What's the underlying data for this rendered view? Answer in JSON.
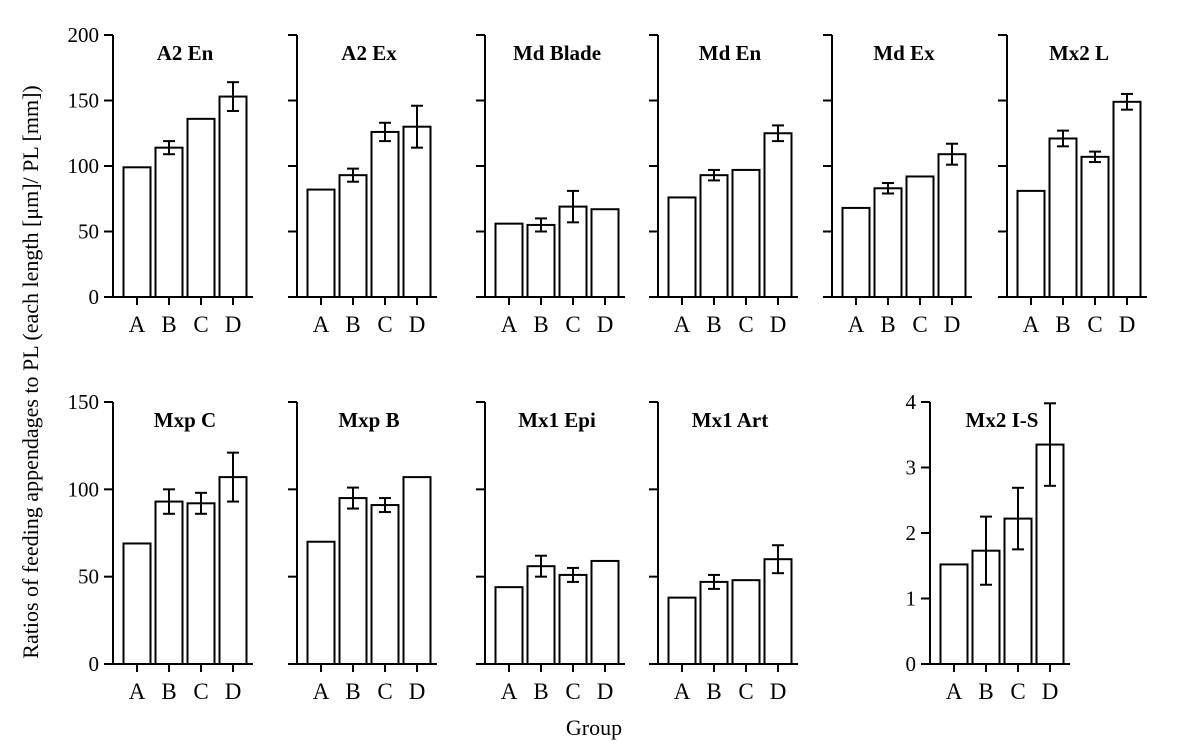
{
  "figure": {
    "ylabel": "Ratios of feeding appendages to PL (each length [μm]/ PL [mm])",
    "xlabel": "Group"
  },
  "chart_data": [
    {
      "type": "bar",
      "title": "A2 En",
      "categories": [
        "A",
        "B",
        "C",
        "D"
      ],
      "values": [
        99,
        114,
        136,
        153
      ],
      "errors": [
        0,
        5,
        0,
        11
      ],
      "ylim": [
        0,
        200
      ],
      "yticks": [
        0,
        50,
        100,
        150,
        200
      ],
      "show_tick_labels": true
    },
    {
      "type": "bar",
      "title": "A2 Ex",
      "categories": [
        "A",
        "B",
        "C",
        "D"
      ],
      "values": [
        82,
        93,
        126,
        130
      ],
      "errors": [
        0,
        5,
        7,
        16
      ],
      "ylim": [
        0,
        200
      ],
      "yticks": [
        0,
        50,
        100,
        150,
        200
      ],
      "show_tick_labels": false
    },
    {
      "type": "bar",
      "title": "Md Blade",
      "categories": [
        "A",
        "B",
        "C",
        "D"
      ],
      "values": [
        56,
        55,
        69,
        67
      ],
      "errors": [
        0,
        5,
        12,
        0
      ],
      "ylim": [
        0,
        200
      ],
      "yticks": [
        0,
        50,
        100,
        150,
        200
      ],
      "show_tick_labels": false
    },
    {
      "type": "bar",
      "title": "Md En",
      "categories": [
        "A",
        "B",
        "C",
        "D"
      ],
      "values": [
        76,
        93,
        97,
        125
      ],
      "errors": [
        0,
        4,
        0,
        6
      ],
      "ylim": [
        0,
        200
      ],
      "yticks": [
        0,
        50,
        100,
        150,
        200
      ],
      "show_tick_labels": false
    },
    {
      "type": "bar",
      "title": "Md Ex",
      "categories": [
        "A",
        "B",
        "C",
        "D"
      ],
      "values": [
        68,
        83,
        92,
        109
      ],
      "errors": [
        0,
        4,
        0,
        8
      ],
      "ylim": [
        0,
        200
      ],
      "yticks": [
        0,
        50,
        100,
        150,
        200
      ],
      "show_tick_labels": false
    },
    {
      "type": "bar",
      "title": "Mx2 L",
      "categories": [
        "A",
        "B",
        "C",
        "D"
      ],
      "values": [
        81,
        121,
        107,
        149
      ],
      "errors": [
        0,
        6,
        4,
        6
      ],
      "ylim": [
        0,
        200
      ],
      "yticks": [
        0,
        50,
        100,
        150,
        200
      ],
      "show_tick_labels": false
    },
    {
      "type": "bar",
      "title": "Mxp C",
      "categories": [
        "A",
        "B",
        "C",
        "D"
      ],
      "values": [
        69,
        93,
        92,
        107
      ],
      "errors": [
        0,
        7,
        6,
        14
      ],
      "ylim": [
        0,
        150
      ],
      "yticks": [
        0,
        50,
        100,
        150
      ],
      "show_tick_labels": true
    },
    {
      "type": "bar",
      "title": "Mxp B",
      "categories": [
        "A",
        "B",
        "C",
        "D"
      ],
      "values": [
        70,
        95,
        91,
        107
      ],
      "errors": [
        0,
        6,
        4,
        0
      ],
      "ylim": [
        0,
        150
      ],
      "yticks": [
        0,
        50,
        100,
        150
      ],
      "show_tick_labels": false
    },
    {
      "type": "bar",
      "title": "Mx1 Epi",
      "categories": [
        "A",
        "B",
        "C",
        "D"
      ],
      "values": [
        44,
        56,
        51,
        59
      ],
      "errors": [
        0,
        6,
        4,
        0
      ],
      "ylim": [
        0,
        150
      ],
      "yticks": [
        0,
        50,
        100,
        150
      ],
      "show_tick_labels": false
    },
    {
      "type": "bar",
      "title": "Mx1 Art",
      "categories": [
        "A",
        "B",
        "C",
        "D"
      ],
      "values": [
        38,
        47,
        48,
        60
      ],
      "errors": [
        0,
        4,
        0,
        8
      ],
      "ylim": [
        0,
        150
      ],
      "yticks": [
        0,
        50,
        100,
        150
      ],
      "show_tick_labels": false
    },
    {
      "type": "bar",
      "title": "Mx2 I-S",
      "categories": [
        "A",
        "B",
        "C",
        "D"
      ],
      "values": [
        1.52,
        1.73,
        2.22,
        3.35
      ],
      "errors": [
        0,
        0.52,
        0.47,
        0.63
      ],
      "ylim": [
        0,
        4
      ],
      "yticks": [
        0,
        1,
        2,
        3,
        4
      ],
      "show_tick_labels": true
    }
  ]
}
